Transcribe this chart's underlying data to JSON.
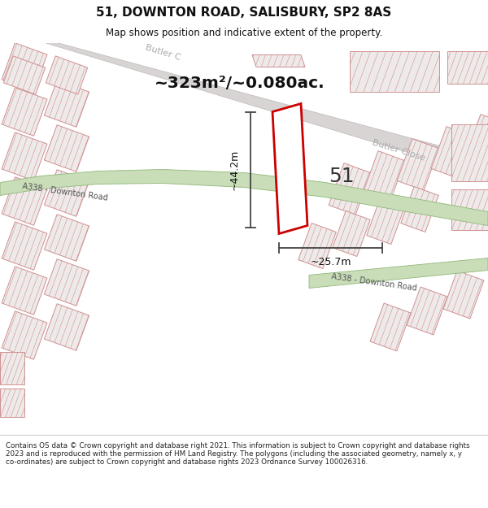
{
  "title_line1": "51, DOWNTON ROAD, SALISBURY, SP2 8AS",
  "title_line2": "Map shows position and indicative extent of the property.",
  "area_label": "~323m²/~0.080ac.",
  "dim_height": "~44.2m",
  "dim_width": "~25.7m",
  "house_number": "51",
  "road_label_upper": "A338 - Downton Road",
  "road_label_lower": "A338 - Downton Road",
  "butler_close_upper": "Butler C",
  "butler_close_lower": "Butler Close",
  "footer_text": "Contains OS data © Crown copyright and database right 2021. This information is subject to Crown copyright and database rights 2023 and is reproduced with the permission of HM Land Registry. The polygons (including the associated geometry, namely x, y co-ordinates) are subject to Crown copyright and database rights 2023 Ordnance Survey 100026316.",
  "map_bg": "#f9f6f6",
  "green_road_fill": "#c8ddb8",
  "green_road_edge": "#90b878",
  "building_fill": "#eeeaea",
  "building_edge": "#d09090",
  "gray_road_fill": "#d8d4d4",
  "gray_road_edge": "#c0b8b8",
  "highlight_fill": "#ffffff",
  "highlight_edge": "#cc0000",
  "dim_color": "#444444",
  "text_dark": "#111111",
  "road_text_color": "#555555",
  "butler_text_color": "#aaaaaa",
  "footer_sep_color": "#cccccc",
  "hatch_color": "#d09090"
}
